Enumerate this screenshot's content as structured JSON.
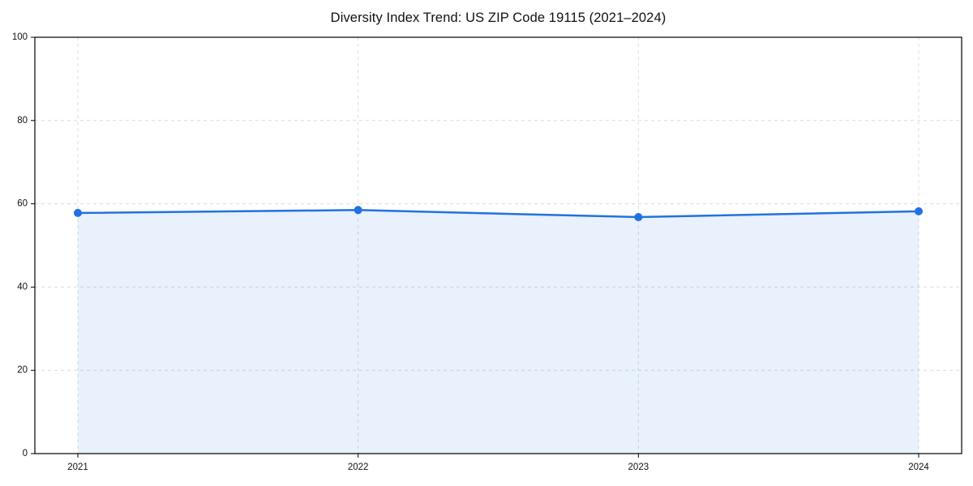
{
  "chart_data": {
    "type": "area",
    "title": "Diversity Index Trend: US ZIP Code 19115 (2021–2024)",
    "categories": [
      "2021",
      "2022",
      "2023",
      "2024"
    ],
    "series": [
      {
        "name": "Diversity Index",
        "values": [
          57.8,
          58.5,
          56.8,
          58.2
        ]
      }
    ],
    "xlabel": "",
    "ylabel": "",
    "ylim": [
      0,
      100
    ],
    "yticks": [
      0,
      20,
      40,
      60,
      80,
      100
    ],
    "grid": true,
    "legend": false,
    "line_color": "#2271e3",
    "fill_color": "rgba(34,113,227,0.10)",
    "grid_color": "#dcdcdc",
    "spine_color": "#000000",
    "marker_radius": 5,
    "line_width": 2.5
  }
}
